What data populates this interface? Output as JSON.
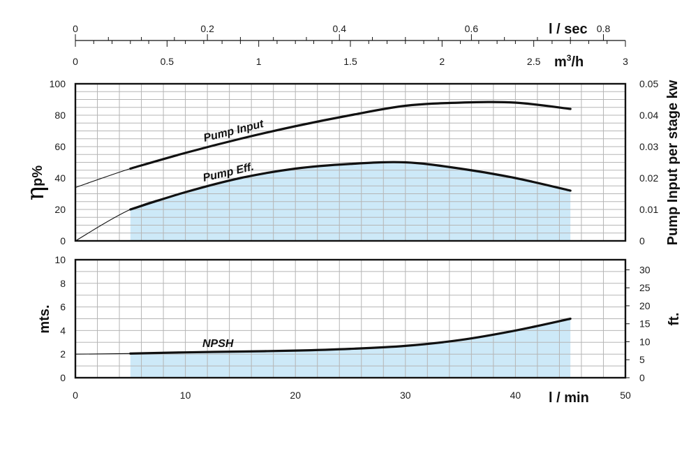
{
  "colors": {
    "fill": "#cde9f8",
    "curve": "#111111",
    "grid": "#b5b5b5",
    "frame": "#111111"
  },
  "chart_data": {
    "type": "line",
    "top_axes": {
      "lsec": {
        "unit": "l / sec",
        "ticks": [
          "0",
          "0.2",
          "0.4",
          "0.6",
          "0.8"
        ],
        "range": [
          0,
          0.8333
        ]
      },
      "m3h": {
        "unit_base": "m",
        "unit_sup": "3",
        "unit_tail": "/h",
        "ticks": [
          "0",
          "0.5",
          "1",
          "1.5",
          "2",
          "2.5",
          "3"
        ],
        "range": [
          0,
          3
        ]
      }
    },
    "x_axis": {
      "label": "l / min",
      "ticks": [
        "0",
        "10",
        "20",
        "30",
        "40",
        "50"
      ],
      "range": [
        0,
        50
      ]
    },
    "upper_panel": {
      "ylabel_left_main": "η",
      "ylabel_left_sub": "p%",
      "ylabel_right": "Pump Input per stage kw",
      "yticks_left": [
        "0",
        "20",
        "40",
        "60",
        "80",
        "100"
      ],
      "yticks_right": [
        "0",
        "0.01",
        "0.02",
        "0.03",
        "0.04",
        "0.05"
      ],
      "ylim_left": [
        0,
        100
      ],
      "ylim_right": [
        0,
        0.05
      ],
      "series": [
        {
          "name": "Pump Input",
          "x": [
            0,
            5,
            10,
            15,
            20,
            25,
            30,
            35,
            40,
            45
          ],
          "y": [
            34,
            46,
            56,
            65,
            73,
            80,
            86,
            88,
            88,
            84
          ],
          "operating_range": [
            5,
            45
          ]
        },
        {
          "name": "Pump Eff.",
          "x": [
            0,
            5,
            10,
            15,
            20,
            25,
            30,
            35,
            40,
            45
          ],
          "y": [
            0,
            20,
            31,
            40,
            46,
            49,
            50,
            46,
            40,
            32
          ],
          "operating_range": [
            5,
            45
          ]
        }
      ]
    },
    "lower_panel": {
      "ylabel_left": "mts.",
      "ylabel_right": "ft.",
      "yticks_left": [
        "0",
        "2",
        "4",
        "6",
        "8",
        "10"
      ],
      "yticks_right": [
        "0",
        "5",
        "10",
        "15",
        "20",
        "25",
        "30"
      ],
      "ylim_left": [
        0,
        10
      ],
      "ylim_right": [
        0,
        32.8
      ],
      "series": [
        {
          "name": "NPSH",
          "x": [
            0,
            5,
            10,
            15,
            20,
            25,
            30,
            35,
            40,
            45
          ],
          "y": [
            2.0,
            2.05,
            2.15,
            2.22,
            2.3,
            2.45,
            2.7,
            3.2,
            4.0,
            5.0
          ],
          "operating_range": [
            5,
            45
          ]
        }
      ]
    },
    "grid": true
  }
}
